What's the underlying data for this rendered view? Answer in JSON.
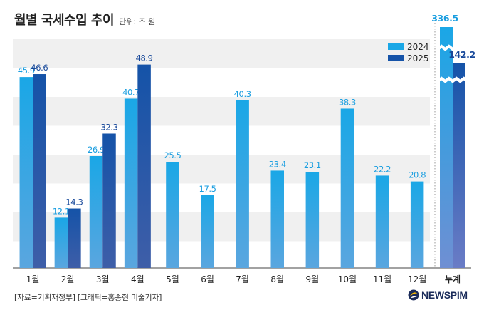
{
  "header": {
    "title": "월별 국세수입 추이",
    "unit": "단위: 조 원"
  },
  "chart_data": {
    "type": "bar",
    "title": "월별 국세수입 추이",
    "unit": "단위: 조 원",
    "categories": [
      "1월",
      "2월",
      "3월",
      "4월",
      "5월",
      "6월",
      "7월",
      "8월",
      "9월",
      "10월",
      "11월",
      "12월"
    ],
    "series": [
      {
        "name": "2024",
        "color": "#1aa7e6",
        "values": [
          45.9,
          12.1,
          26.9,
          40.7,
          25.5,
          17.5,
          40.3,
          23.4,
          23.1,
          38.3,
          22.2,
          20.8
        ]
      },
      {
        "name": "2025",
        "color": "#1553a8",
        "values": [
          46.6,
          14.3,
          32.3,
          48.9,
          null,
          null,
          null,
          null,
          null,
          null,
          null,
          null
        ]
      }
    ],
    "cumulative": {
      "label": "누계",
      "values": [
        336.5,
        142.2
      ],
      "axis_break": true
    },
    "ylim": [
      0,
      55
    ],
    "grid": "alternating bands",
    "legend": "top-right"
  },
  "footer": {
    "source": "[자료=기획재정부] [그래픽=홍종현 미술기자]",
    "logo": "NEWSPIM"
  }
}
